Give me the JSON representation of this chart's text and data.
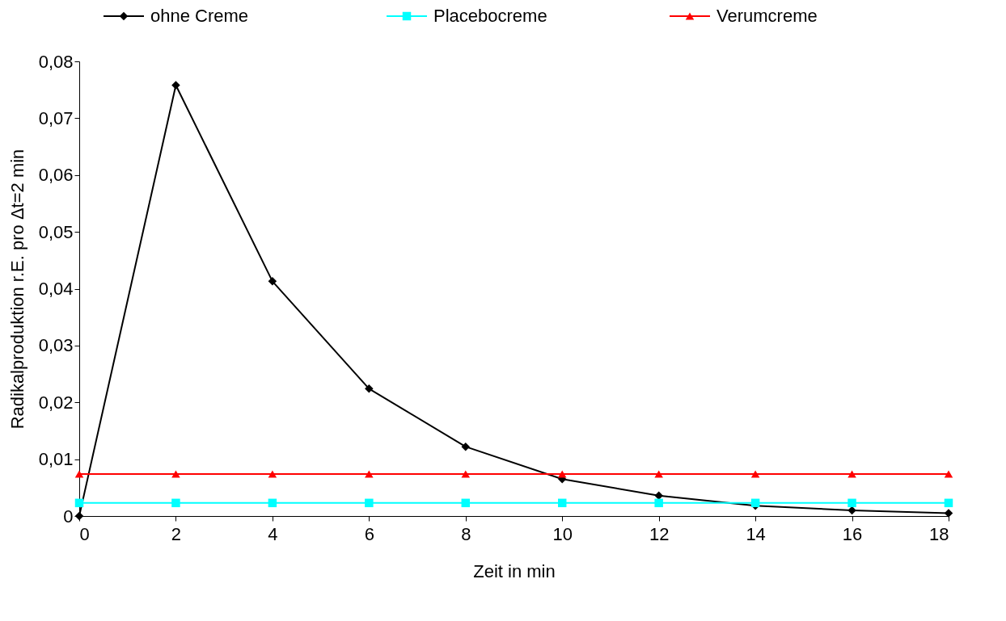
{
  "chart_data": {
    "type": "line",
    "xlabel": "Zeit in min",
    "ylabel": "Radikalproduktion r.E.  pro Δt=2 min",
    "x": [
      0,
      2,
      4,
      6,
      8,
      10,
      12,
      14,
      16,
      18
    ],
    "series": [
      {
        "name": "ohne Creme",
        "color": "#000000",
        "marker": "diamond",
        "values": [
          0,
          0.0758,
          0.0413,
          0.0224,
          0.0122,
          0.0065,
          0.0036,
          0.0018,
          0.001,
          0.0005
        ]
      },
      {
        "name": "Placebocreme",
        "color": "#00ffff",
        "marker": "square",
        "values": [
          0.0023,
          0.0023,
          0.0023,
          0.0023,
          0.0023,
          0.0023,
          0.0023,
          0.0023,
          0.0023,
          0.0023
        ]
      },
      {
        "name": "Verumcreme",
        "color": "#ff0000",
        "marker": "triangle",
        "values": [
          0.0074,
          0.0074,
          0.0074,
          0.0074,
          0.0074,
          0.0074,
          0.0074,
          0.0074,
          0.0074,
          0.0074
        ]
      }
    ],
    "xlim": [
      0,
      18
    ],
    "xticks": [
      0,
      2,
      4,
      6,
      8,
      10,
      12,
      14,
      16,
      18
    ],
    "ylim": [
      0,
      0.08
    ],
    "yticks": [
      {
        "value": 0,
        "label": "0"
      },
      {
        "value": 0.01,
        "label": "0,01"
      },
      {
        "value": 0.02,
        "label": "0,02"
      },
      {
        "value": 0.03,
        "label": "0,03"
      },
      {
        "value": 0.04,
        "label": "0,04"
      },
      {
        "value": 0.05,
        "label": "0,05"
      },
      {
        "value": 0.06,
        "label": "0,06"
      },
      {
        "value": 0.07,
        "label": "0,07"
      },
      {
        "value": 0.08,
        "label": "0,08"
      }
    ],
    "grid": false,
    "legend": "top",
    "line_style": "solid"
  }
}
